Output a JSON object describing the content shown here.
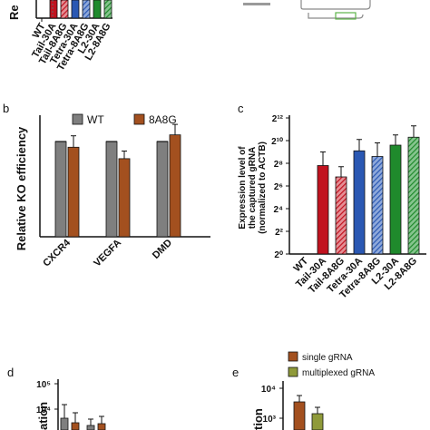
{
  "panels": {
    "a": {
      "ylabel": "Re",
      "tick_labels": [
        "WT",
        "Tail-30A",
        "Tail-8A8G",
        "Tetra-30A",
        "Tetra-8A8G",
        "L2-30A",
        "L2-8A8G"
      ]
    },
    "a_side": {
      "legend": ""
    },
    "b": {
      "label": "b"
    },
    "c": {
      "label": "c"
    },
    "d": {
      "label": "d",
      "ytick_labels": [
        "10⁵",
        "10⁴"
      ],
      "ylabel": "ation"
    },
    "e": {
      "label": "e",
      "ytick_labels": [
        "10⁴",
        "10³"
      ],
      "ylabel": "tion",
      "legend": [
        "single gRNA",
        "multiplexed gRNA"
      ]
    }
  },
  "colors": {
    "wt": "#7f7f7f",
    "e8a8g": "#a3501f",
    "red": "#c1121f",
    "blue": "#2a58b3",
    "green": "#1f8a2c",
    "olive": "#8f9a3a"
  },
  "chart_data": [
    {
      "panel": "b",
      "type": "bar",
      "title": "",
      "ylabel": "Relative KO efficiency",
      "xlabel": "",
      "categories": [
        "CXCR4",
        "VEGFA",
        "DMD"
      ],
      "ylim": [
        0,
        1.2
      ],
      "yticks": [
        0,
        0.2,
        0.4,
        0.6,
        0.8,
        1.0,
        1.2
      ],
      "legend_position": "top",
      "series": [
        {
          "name": "WT",
          "color": "#7f7f7f",
          "values": [
            1.0,
            1.0,
            1.0
          ],
          "errors": [
            0,
            0,
            0
          ]
        },
        {
          "name": "8A8G",
          "color": "#a3501f",
          "values": [
            0.94,
            0.82,
            1.07
          ],
          "errors": [
            0.12,
            0.08,
            0.11
          ]
        }
      ]
    },
    {
      "panel": "c",
      "type": "bar",
      "title": "",
      "ylabel": "Expression level of the captured gRNA (normalized to ACTB)",
      "xlabel": "",
      "yscale": "log2",
      "ytick_labels": [
        "2⁰",
        "2²",
        "2⁴",
        "2⁶",
        "2⁸",
        "2¹⁰",
        "2¹²"
      ],
      "categories": [
        "WT",
        "Tail-30A",
        "Tail-8A8G",
        "Tetra-30A",
        "Tetra-8A8G",
        "L2-30A",
        "L2-8A8G"
      ],
      "ylim_exponent": [
        0,
        12
      ],
      "values_exponent": [
        0,
        7.8,
        6.8,
        9.1,
        8.6,
        9.6,
        10.3
      ],
      "errors_exponent": [
        0,
        1.2,
        0.9,
        1.0,
        1.2,
        0.9,
        1.0
      ],
      "colors": [
        "#7f7f7f",
        "#c1121f",
        "#c1121f",
        "#2a58b3",
        "#2a58b3",
        "#1f8a2c",
        "#1f8a2c"
      ],
      "hatched": [
        false,
        false,
        true,
        false,
        true,
        false,
        true
      ]
    }
  ]
}
